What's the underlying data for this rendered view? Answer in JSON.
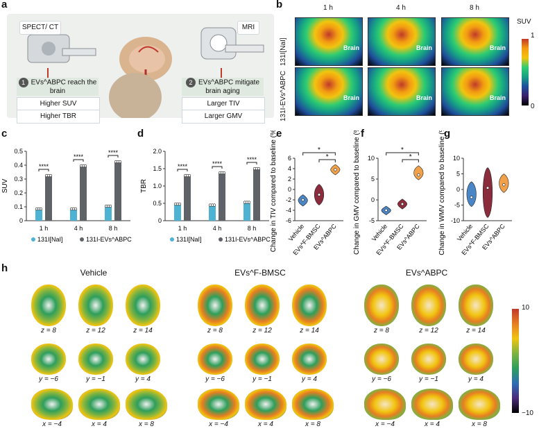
{
  "panel_a": {
    "label": "a",
    "spect_label": "SPECT/ CT",
    "mri_label": "MRI",
    "step1_num": "1",
    "step1_text": "EVs^ABPC reach the brain",
    "step2_num": "2",
    "step2_text": "EVs^ABPC mitigate brain aging",
    "left_items": [
      "Higher SUV",
      "Higher TBR"
    ],
    "right_items": [
      "Larger TIV",
      "Larger GMV"
    ]
  },
  "panel_b": {
    "label": "b",
    "times": [
      "1 h",
      "4 h",
      "8 h"
    ],
    "rows": [
      "131I[NaI]",
      "131I-EVs^ABPC"
    ],
    "brain_label": "Brain",
    "colorbar_title": "SUV",
    "colorbar_max": "1",
    "colorbar_min": "0"
  },
  "chart_data": [
    {
      "id": "c",
      "type": "bar",
      "ylabel": "SUV",
      "categories": [
        "1 h",
        "4 h",
        "8 h"
      ],
      "ylim": [
        0,
        0.5
      ],
      "yticks": [
        "0",
        "0.1",
        "0.2",
        "0.3",
        "0.4",
        "0.5"
      ],
      "series": [
        {
          "name": "131I[NaI]",
          "color": "#4eb3d3",
          "values": [
            0.09,
            0.09,
            0.11
          ]
        },
        {
          "name": "131I-EVs^ABPC",
          "color": "#5f6368",
          "values": [
            0.33,
            0.4,
            0.43
          ]
        }
      ],
      "sig": [
        "****",
        "****",
        "****"
      ]
    },
    {
      "id": "d",
      "type": "bar",
      "ylabel": "TBR",
      "categories": [
        "1 h",
        "4 h",
        "8 h"
      ],
      "ylim": [
        0,
        2.0
      ],
      "yticks": [
        "0",
        "0.5",
        "1.0",
        "1.5",
        "2.0"
      ],
      "series": [
        {
          "name": "131I[NaI]",
          "color": "#4eb3d3",
          "values": [
            0.5,
            0.47,
            0.55
          ]
        },
        {
          "name": "131I-EVs^ABPC",
          "color": "#5f6368",
          "values": [
            1.32,
            1.4,
            1.52
          ]
        }
      ],
      "sig": [
        "****",
        "****",
        "****"
      ]
    },
    {
      "id": "e",
      "type": "violin",
      "ylabel": "Change in TIV compared to baseline (%)",
      "categories": [
        "Vehicle",
        "EVs^F-BMSC",
        "EVs^ABPC"
      ],
      "ylim": [
        -6,
        6
      ],
      "yticks": [
        "-6",
        "-4",
        "-2",
        "0",
        "2",
        "4",
        "6"
      ],
      "medians": [
        -2.0,
        -1.0,
        3.8
      ],
      "ranges": [
        [
          -3.2,
          -1.0
        ],
        [
          -3.0,
          1.0
        ],
        [
          2.8,
          4.8
        ]
      ],
      "colors": [
        "#4a86c5",
        "#8b2c3c",
        "#f0a14a"
      ],
      "sig": [
        "*",
        "*"
      ]
    },
    {
      "id": "f",
      "type": "violin",
      "ylabel": "Change in GMV compared to baseline (%)",
      "categories": [
        "Vehicle",
        "EVs^F-BMSC",
        "EVs^ABPC"
      ],
      "ylim": [
        -5,
        10
      ],
      "yticks": [
        "-5",
        "0",
        "5",
        "10"
      ],
      "medians": [
        -2.5,
        -1.0,
        6.0
      ],
      "ranges": [
        [
          -3.6,
          -1.5
        ],
        [
          -2.2,
          0.2
        ],
        [
          4.8,
          8.2
        ]
      ],
      "colors": [
        "#4a86c5",
        "#8b2c3c",
        "#f0a14a"
      ],
      "sig": [
        "*",
        "*"
      ]
    },
    {
      "id": "g",
      "type": "violin",
      "ylabel": "Change in WMV compared to baseline (%)",
      "categories": [
        "Vehicle",
        "EVs^F-BMSC",
        "EVs^ABPC"
      ],
      "ylim": [
        -10,
        10
      ],
      "yticks": [
        "-10",
        "-5",
        "0",
        "5",
        "10"
      ],
      "medians": [
        -2.5,
        0.5,
        1.5
      ],
      "ranges": [
        [
          -5.5,
          2.5
        ],
        [
          -9.0,
          7.0
        ],
        [
          -1.0,
          5.0
        ]
      ],
      "colors": [
        "#4a86c5",
        "#8b2c3c",
        "#f0a14a"
      ],
      "sig": []
    }
  ],
  "panel_h": {
    "label": "h",
    "groups": [
      "Vehicle",
      "EVs^F-BMSC",
      "EVs^ABPC"
    ],
    "rows": [
      [
        "z = 8",
        "z = 12",
        "z = 14"
      ],
      [
        "y = −6",
        "y = −1",
        "y = 4"
      ],
      [
        "x = −4",
        "x = 4",
        "x = 8"
      ]
    ],
    "colorbar_max": "10",
    "colorbar_min": "−10"
  }
}
